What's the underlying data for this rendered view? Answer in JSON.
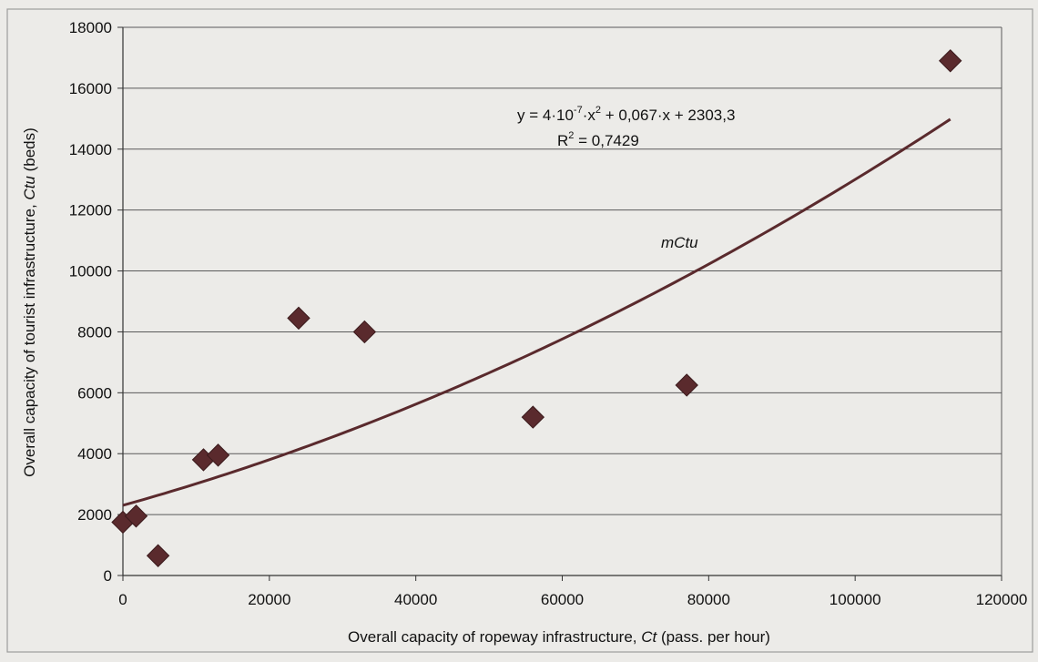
{
  "chart_data": {
    "type": "scatter",
    "xlabel_text": "Overall capacity of ropeway infrastructure, ",
    "xlabel_var": "Ct",
    "xlabel_unit": " (pass. per hour)",
    "ylabel_text": "Overall capacity of tourist infrastructure, ",
    "ylabel_var": "Ctu",
    "ylabel_unit": " (beds)",
    "xlim": [
      0,
      120000
    ],
    "ylim": [
      0,
      18000
    ],
    "x_ticks": [
      0,
      20000,
      40000,
      60000,
      80000,
      100000,
      120000
    ],
    "y_ticks": [
      0,
      2000,
      4000,
      6000,
      8000,
      10000,
      12000,
      14000,
      16000,
      18000
    ],
    "grid": "horizontal",
    "series": [
      {
        "points": [
          {
            "x": 0,
            "y": 1750
          },
          {
            "x": 1800,
            "y": 1950
          },
          {
            "x": 4800,
            "y": 650
          },
          {
            "x": 11000,
            "y": 3800
          },
          {
            "x": 13000,
            "y": 3950
          },
          {
            "x": 24000,
            "y": 8450
          },
          {
            "x": 33000,
            "y": 8000
          },
          {
            "x": 56000,
            "y": 5200
          },
          {
            "x": 77000,
            "y": 6250
          },
          {
            "x": 113000,
            "y": 16900
          }
        ],
        "marker": "diamond",
        "color": "#5a2a2d"
      }
    ],
    "trendline": {
      "type": "polynomial",
      "label": "mCtu",
      "a": 4e-07,
      "b": 0.067,
      "c": 2303.3,
      "x_range": [
        0,
        113000
      ],
      "color": "#5a2a2d"
    },
    "equation": {
      "prefix": "y = 4·10",
      "exp1": "-7",
      "mid": "·x",
      "exp2": "2",
      "suffix": " + 0,067·x + 2303,3"
    },
    "r_squared": {
      "prefix": "R",
      "exp": "2",
      "suffix": " = 0,7429"
    }
  }
}
